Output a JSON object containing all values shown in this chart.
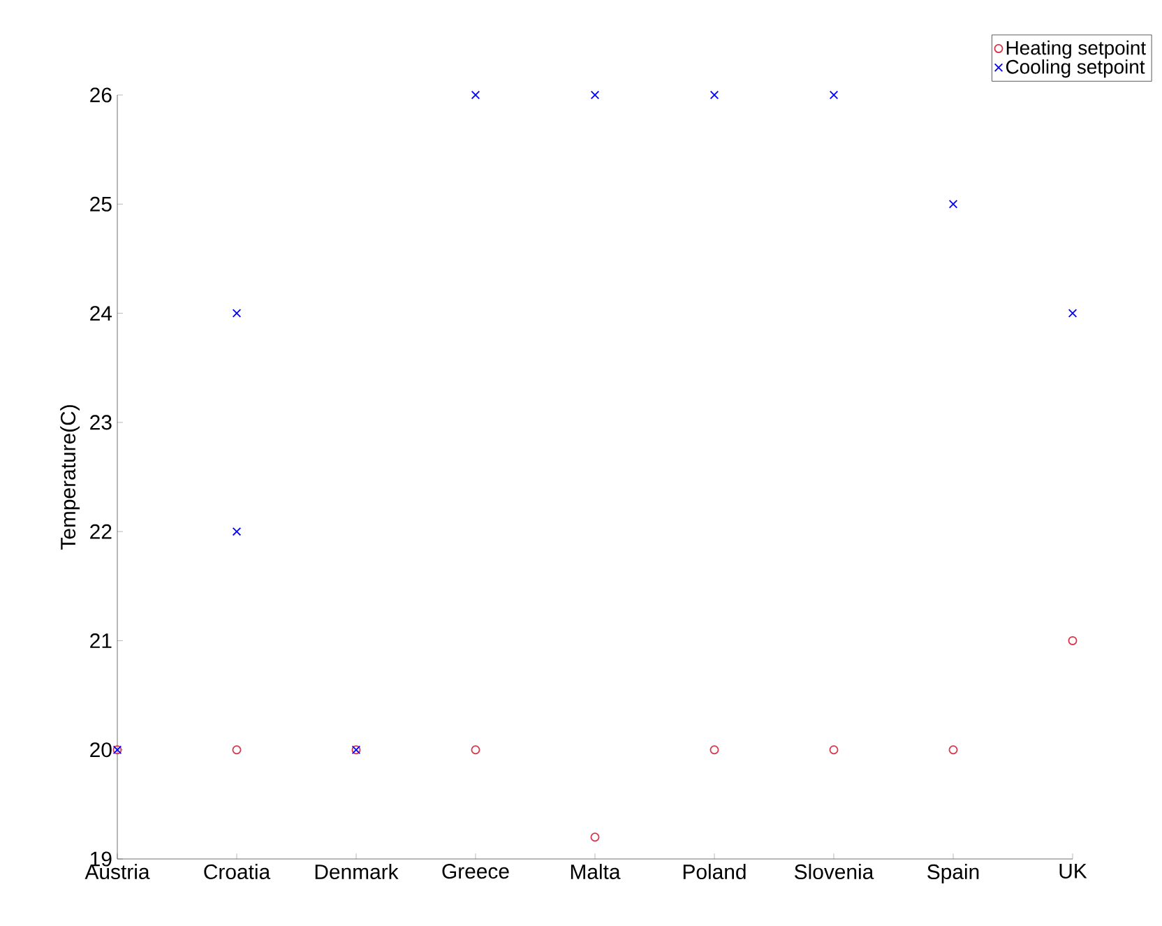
{
  "chart_data": {
    "type": "scatter",
    "ylabel": "Temperature(C)",
    "categories": [
      "Austria",
      "Croatia",
      "Denmark",
      "Greece",
      "Malta",
      "Poland",
      "Slovenia",
      "Spain",
      "UK"
    ],
    "series": [
      {
        "name": "Heating setpoint",
        "color": "#d9344a",
        "marker": "circle",
        "values": [
          20,
          20,
          20,
          20,
          19.2,
          20,
          20,
          20,
          21
        ]
      },
      {
        "name": "Cooling setpoint",
        "color": "#0000ff",
        "marker": "cross",
        "x": [
          "Austria",
          "Croatia",
          "Croatia",
          "Denmark",
          "Greece",
          "Malta",
          "Poland",
          "Slovenia",
          "Spain",
          "UK"
        ],
        "values": [
          20,
          24,
          22,
          20,
          26,
          26,
          26,
          26,
          25,
          24
        ]
      }
    ],
    "ylim": [
      19,
      26
    ],
    "yticks": [
      19,
      20,
      21,
      22,
      23,
      24,
      25,
      26
    ],
    "grid": false,
    "legend": "top right"
  }
}
